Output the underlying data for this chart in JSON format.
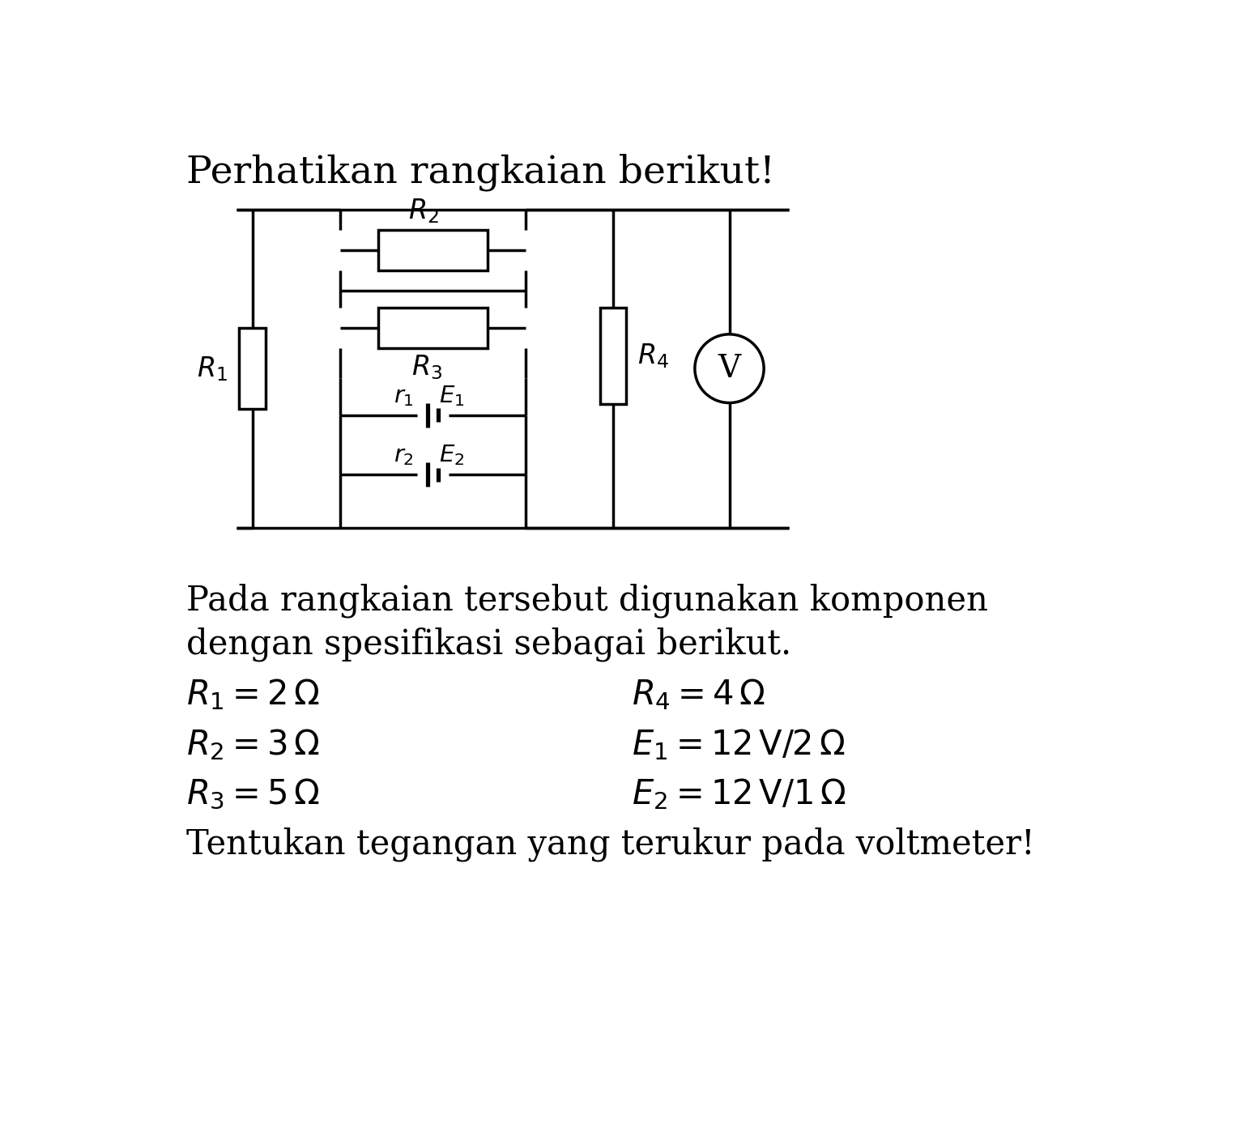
{
  "title": "Perhatikan rangkaian berikut!",
  "background_color": "#ffffff",
  "text_color": "#000000",
  "line_color": "#000000",
  "paragraph1": "Pada rangkaian tersebut digunakan komponen",
  "paragraph2": "dengan spesifikasi sebagai berikut.",
  "specs_left": [
    "$R_1 = 2\\,\\Omega$",
    "$R_2 = 3\\,\\Omega$",
    "$R_3 = 5\\,\\Omega$"
  ],
  "specs_right": [
    "$R_4 = 4\\,\\Omega$",
    "$E_1 = 12\\,\\mathrm{V}/2\\,\\Omega$",
    "$E_2 = 12\\,\\mathrm{V}/1\\,\\Omega$"
  ],
  "footer": "Tentukan tegangan yang terukur pada voltmeter!",
  "title_fontsize": 34,
  "body_fontsize": 30,
  "spec_fontsize": 30,
  "label_fontsize": 24
}
